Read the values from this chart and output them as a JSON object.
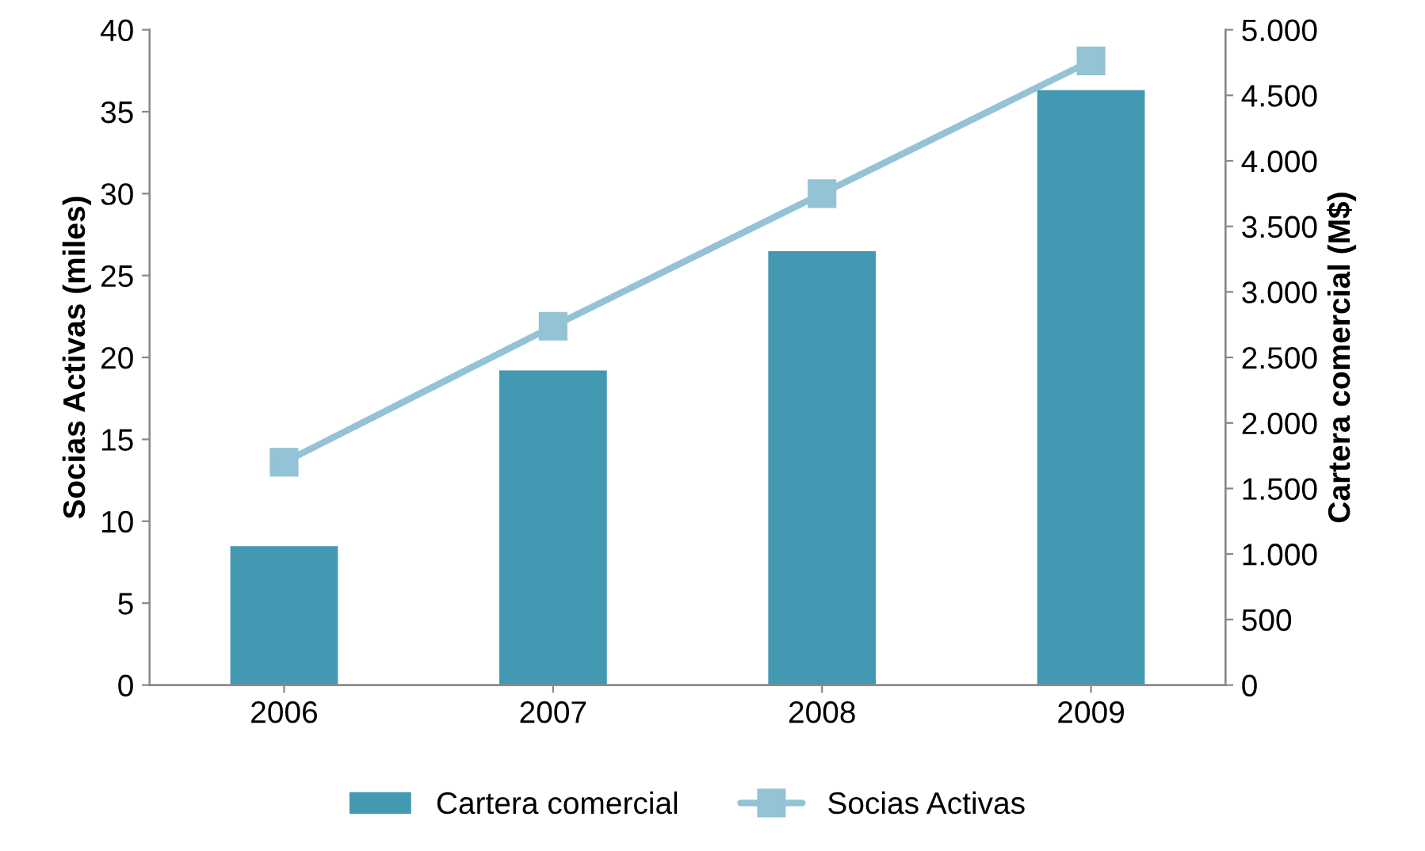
{
  "chart_data": {
    "type": "bar",
    "categories": [
      "2006",
      "2007",
      "2008",
      "2009"
    ],
    "ylabel": "Socias Activas (miles)",
    "y2label": "Cartera comercial (M$)",
    "series": [
      {
        "name": "Cartera comercial",
        "axis": "y2",
        "color": "#4399b2",
        "values": [
          1060,
          2400,
          3310,
          4540
        ]
      },
      {
        "name": "Socias Activas",
        "type": "line",
        "axis": "y",
        "color": "#93c3d5",
        "values": [
          13.6,
          21.9,
          30.0,
          38.1
        ]
      }
    ],
    "ylim": [
      0,
      40
    ],
    "yticks": [
      0,
      5,
      10,
      15,
      20,
      25,
      30,
      35,
      40
    ],
    "y2lim": [
      0,
      5000
    ],
    "y2ticks": [
      0,
      {
        "value": 500,
        "label": "500"
      },
      {
        "value": 1000,
        "label": "1.000"
      },
      {
        "value": 1500,
        "label": "1.500"
      },
      {
        "value": 2000,
        "label": "2.000"
      },
      {
        "value": 2500,
        "label": "2.500"
      },
      {
        "value": 3000,
        "label": "3.000"
      },
      {
        "value": 3500,
        "label": "3.500"
      },
      {
        "value": 4000,
        "label": "4.000"
      },
      {
        "value": 4500,
        "label": "4.500"
      },
      {
        "value": 5000,
        "label": "5.000"
      }
    ],
    "marker": "square",
    "legend": "bottom",
    "grid": false
  }
}
